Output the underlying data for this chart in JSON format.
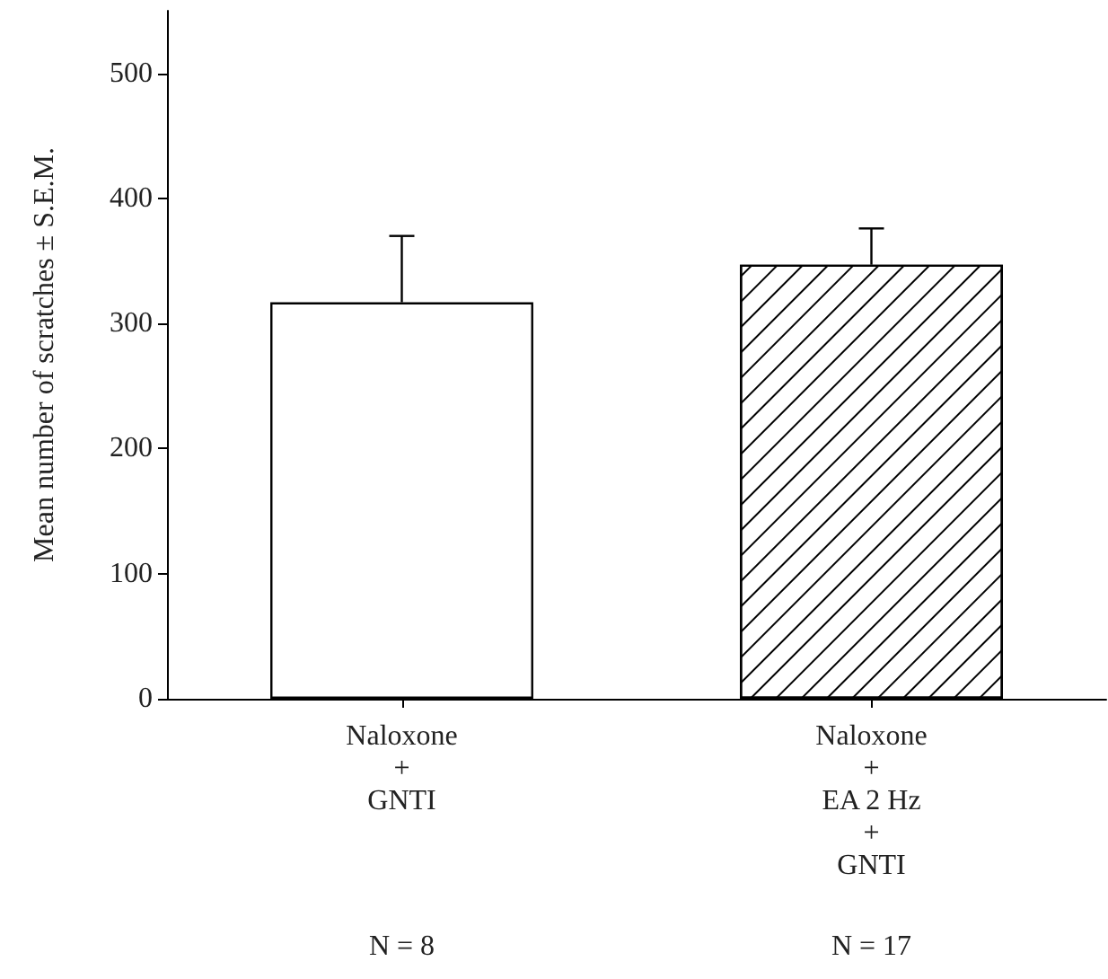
{
  "chart_data": {
    "type": "bar",
    "ylabel": "Mean number of scratches ± S.E.M.",
    "categories": [
      "Naloxone\n+\nGNTI",
      "Naloxone\n+\nEA 2 Hz\n+\nGNTI"
    ],
    "values": [
      317,
      347
    ],
    "colors": [
      "#ffffff",
      "#ffffff"
    ],
    "errors": [
      [
        317,
        370
      ],
      [
        347,
        376
      ]
    ],
    "ylim": [
      0,
      550
    ],
    "yticks": [
      0,
      100,
      200,
      300,
      400,
      500
    ],
    "annotations": [
      "N = 8",
      "N = 17"
    ]
  }
}
